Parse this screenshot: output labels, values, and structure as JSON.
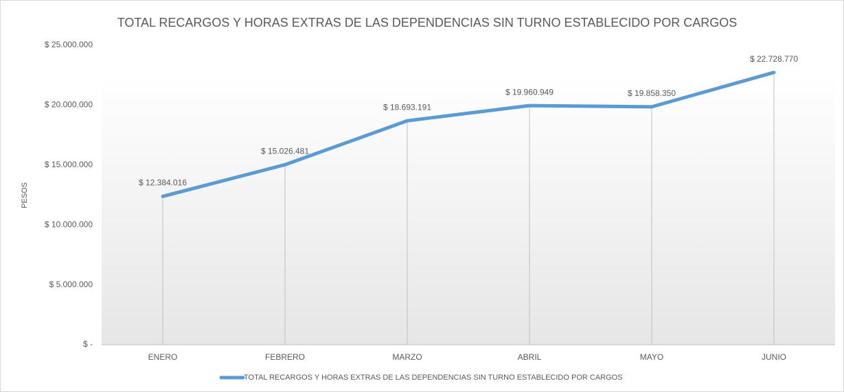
{
  "chart_data": {
    "type": "line",
    "title": "TOTAL RECARGOS Y HORAS EXTRAS DE LAS DEPENDENCIAS SIN TURNO ESTABLECIDO POR CARGOS",
    "y_label": "PESOS",
    "categories": [
      "ENERO",
      "FEBRERO",
      "MARZO",
      "ABRIL",
      "MAYO",
      "JUNIO"
    ],
    "series": [
      {
        "name": "TOTAL RECARGOS Y HORAS EXTRAS DE LAS DEPENDENCIAS SIN TURNO ESTABLECIDO POR CARGOS",
        "color": "#5b9bd5",
        "values": [
          12384016,
          15026481,
          18693191,
          19960949,
          19858350,
          22728770
        ],
        "value_labels": [
          "$ 12.384.016",
          "$ 15.026.481",
          "$ 18.693.191",
          "$ 19.960.949",
          "$ 19.858.350",
          "$ 22.728.770"
        ]
      }
    ],
    "ylim": [
      0,
      25000000
    ],
    "yticks": [
      {
        "value": 0,
        "label": "$ -"
      },
      {
        "value": 5000000,
        "label": "$ 5.000.000"
      },
      {
        "value": 10000000,
        "label": "$ 10.000.000"
      },
      {
        "value": 15000000,
        "label": "$ 15.000.000"
      },
      {
        "value": 20000000,
        "label": "$ 20.000.000"
      },
      {
        "value": 25000000,
        "label": "$ 25.000.000"
      }
    ],
    "grid": false,
    "drop_lines": true,
    "legend": "bottom"
  }
}
